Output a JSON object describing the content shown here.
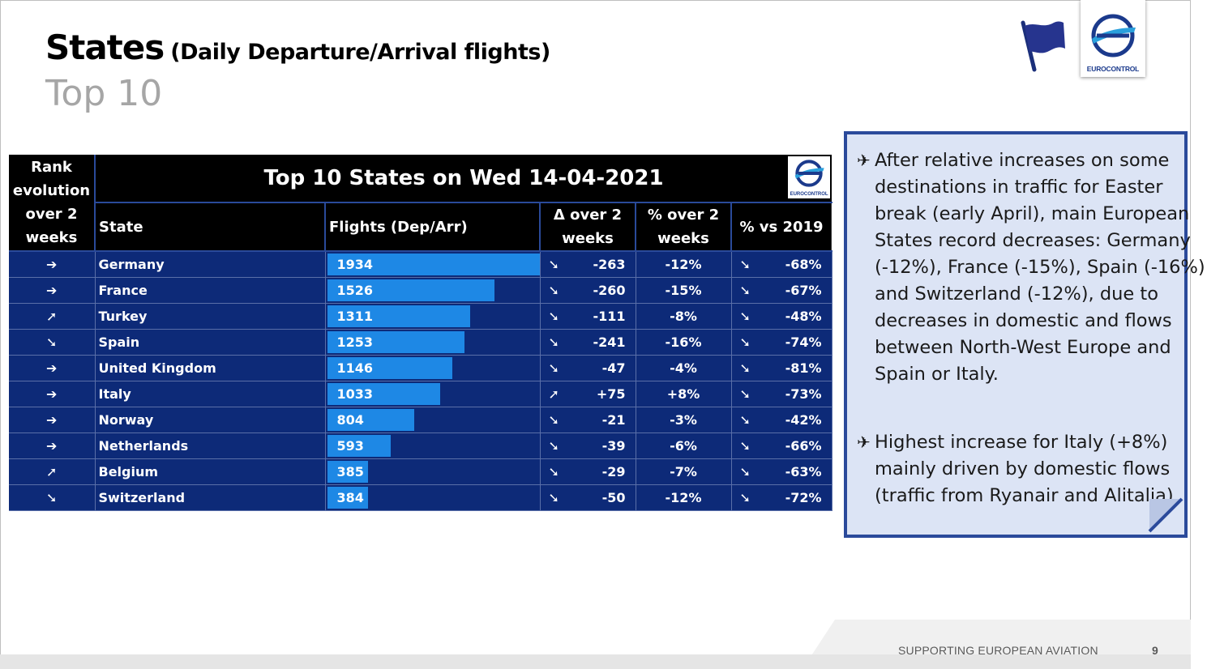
{
  "title": {
    "main": "States",
    "sub": "(Daily Departure/Arrival flights)",
    "subtitle": "Top 10"
  },
  "logo": {
    "label": "EUROCONTROL"
  },
  "table": {
    "banner": "Top 10  States on Wed 14-04-2021",
    "logo_label": "EUROCONTROL",
    "col_rank": "Rank evolution over 2 weeks",
    "col_state": "State",
    "col_flights": "Flights (Dep/Arr)",
    "col_delta": "Δ over 2 weeks",
    "col_pct2": "% over 2 weeks",
    "col_pct2019": "% vs 2019",
    "rows": [
      {
        "rank": "same",
        "state": "Germany",
        "flights": 1934,
        "flights_label": "1934",
        "delta_dir": "down",
        "delta": "-263",
        "pct2": "-12%",
        "vs2019_dir": "down",
        "vs2019": "-68%"
      },
      {
        "rank": "same",
        "state": "France",
        "flights": 1526,
        "flights_label": "1526",
        "delta_dir": "down",
        "delta": "-260",
        "pct2": "-15%",
        "vs2019_dir": "down",
        "vs2019": "-67%"
      },
      {
        "rank": "up",
        "state": "Turkey",
        "flights": 1311,
        "flights_label": "1311",
        "delta_dir": "down",
        "delta": "-111",
        "pct2": "-8%",
        "vs2019_dir": "down",
        "vs2019": "-48%"
      },
      {
        "rank": "down",
        "state": "Spain",
        "flights": 1253,
        "flights_label": "1253",
        "delta_dir": "down",
        "delta": "-241",
        "pct2": "-16%",
        "vs2019_dir": "down",
        "vs2019": "-74%"
      },
      {
        "rank": "same",
        "state": "United Kingdom",
        "flights": 1146,
        "flights_label": "1146",
        "delta_dir": "down",
        "delta": "-47",
        "pct2": "-4%",
        "vs2019_dir": "down",
        "vs2019": "-81%"
      },
      {
        "rank": "same",
        "state": "Italy",
        "flights": 1033,
        "flights_label": "1033",
        "delta_dir": "up",
        "delta": "+75",
        "pct2": "+8%",
        "vs2019_dir": "down",
        "vs2019": "-73%"
      },
      {
        "rank": "same",
        "state": "Norway",
        "flights": 804,
        "flights_label": "804",
        "delta_dir": "down",
        "delta": "-21",
        "pct2": "-3%",
        "vs2019_dir": "down",
        "vs2019": "-42%"
      },
      {
        "rank": "same",
        "state": "Netherlands",
        "flights": 593,
        "flights_label": "593",
        "delta_dir": "down",
        "delta": "-39",
        "pct2": "-6%",
        "vs2019_dir": "down",
        "vs2019": "-66%"
      },
      {
        "rank": "up",
        "state": "Belgium",
        "flights": 385,
        "flights_label": "385",
        "delta_dir": "down",
        "delta": "-29",
        "pct2": "-7%",
        "vs2019_dir": "down",
        "vs2019": "-63%"
      },
      {
        "rank": "down",
        "state": "Switzerland",
        "flights": 384,
        "flights_label": "384",
        "delta_dir": "down",
        "delta": "-50",
        "pct2": "-12%",
        "vs2019_dir": "down",
        "vs2019": "-72%"
      }
    ],
    "flights_max": 1934
  },
  "note": {
    "p1": "After relative increases on some destinations in traffic for Easter break (early April), main European States record decreases: Germany (-12%), France (-15%), Spain (-16%) and Switzerland (-12%), due to decreases in domestic and flows between North-West Europe and Spain or Italy.",
    "p2": "Highest increase for Italy (+8%) mainly driven by domestic flows (traffic from Ryanair and Alitalia)."
  },
  "footer": {
    "text": "SUPPORTING EUROPEAN AVIATION",
    "page": "9"
  },
  "colors": {
    "table_bg": "#0d2a78",
    "bar": "#1e88e5",
    "note_bg": "#dce4f5",
    "note_border": "#2b4a9b",
    "arrow_down": "#e0121e",
    "arrow_up": "#21a336"
  }
}
